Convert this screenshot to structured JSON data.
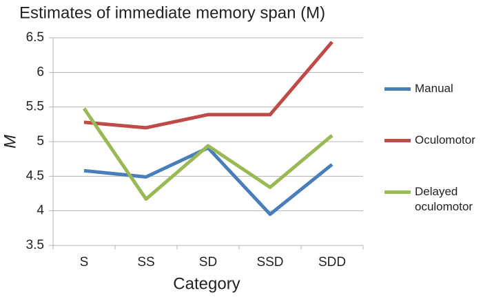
{
  "chart_data": {
    "type": "line",
    "title": "Estimates of immediate memory span (M)",
    "xlabel": "Category",
    "ylabel": "M",
    "categories": [
      "S",
      "SS",
      "SD",
      "SSD",
      "SDD"
    ],
    "series": [
      {
        "name": "Manual",
        "color": "#4a7ebb",
        "values": [
          4.58,
          4.49,
          4.91,
          3.95,
          4.67
        ]
      },
      {
        "name": "Oculomotor",
        "color": "#be4b48",
        "values": [
          5.28,
          5.2,
          5.39,
          5.39,
          6.44
        ]
      },
      {
        "name": "Delayed oculomotor",
        "color": "#98b954",
        "values": [
          5.48,
          4.17,
          4.94,
          4.34,
          5.09
        ]
      }
    ],
    "ylim": [
      3.5,
      6.5
    ],
    "yticks": [
      3.5,
      4,
      4.5,
      5,
      5.5,
      6,
      6.5
    ],
    "grid": true,
    "legend": "right"
  }
}
